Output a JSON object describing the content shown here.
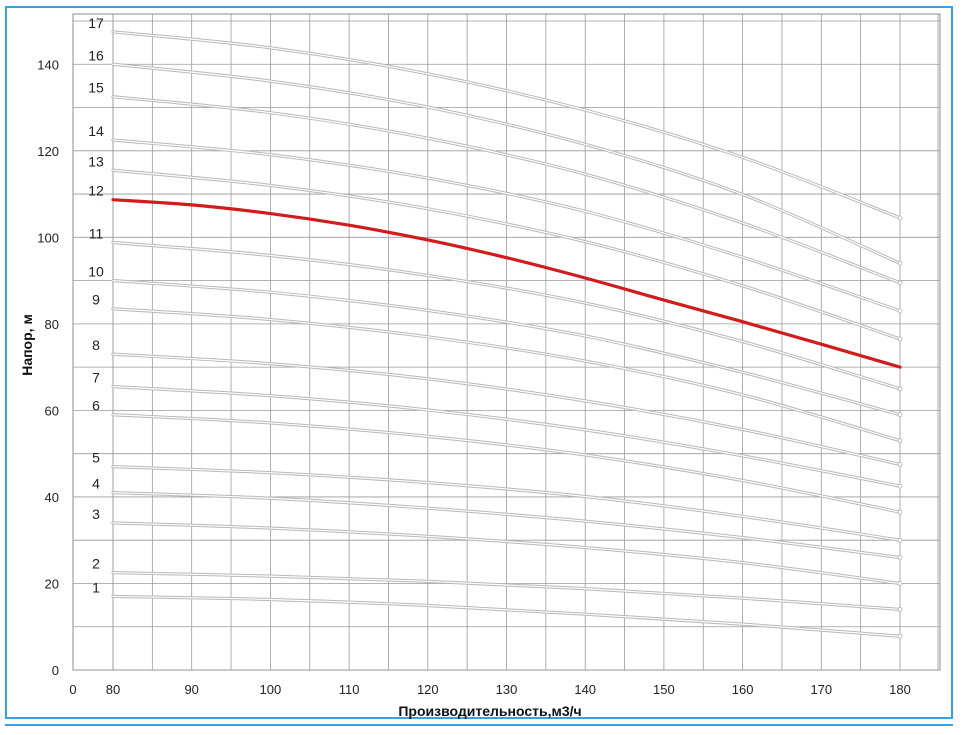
{
  "chart_data": {
    "type": "line",
    "title": "",
    "xlabel": "Производительность,м3/ч",
    "ylabel": "Напор, м",
    "xlim": [
      0,
      180
    ],
    "ylim": [
      0,
      150
    ],
    "x_ticks": [
      "0",
      "80",
      "90",
      "100",
      "110",
      "120",
      "130",
      "140",
      "150",
      "160",
      "170",
      "180"
    ],
    "y_ticks": [
      "0",
      "20",
      "40",
      "60",
      "80",
      "100",
      "120",
      "140"
    ],
    "grid": true,
    "highlight_color": "#d01c1c",
    "curve_color": "#b8b8b8",
    "series": [
      {
        "name": "1",
        "highlight": false,
        "x": [
          80,
          100,
          120,
          140,
          160,
          180
        ],
        "y": [
          17,
          16.3,
          14.9,
          12.9,
          10.6,
          7.8
        ]
      },
      {
        "name": "2",
        "highlight": false,
        "x": [
          80,
          100,
          120,
          140,
          160,
          180
        ],
        "y": [
          22.5,
          21.7,
          20.5,
          18.8,
          16.6,
          14
        ]
      },
      {
        "name": "3",
        "highlight": false,
        "x": [
          80,
          100,
          120,
          140,
          160,
          180
        ],
        "y": [
          34,
          32.8,
          30.9,
          28.3,
          24.8,
          20
        ]
      },
      {
        "name": "4",
        "highlight": false,
        "x": [
          80,
          100,
          120,
          140,
          160,
          180
        ],
        "y": [
          41,
          39.7,
          37.4,
          34.4,
          30.6,
          26
        ]
      },
      {
        "name": "5",
        "highlight": false,
        "x": [
          80,
          100,
          120,
          140,
          160,
          180
        ],
        "y": [
          47,
          45.6,
          43.3,
          40.1,
          35.5,
          30
        ]
      },
      {
        "name": "6",
        "highlight": false,
        "x": [
          80,
          100,
          120,
          140,
          160,
          180
        ],
        "y": [
          59,
          57.1,
          54,
          49.7,
          43.8,
          36.5
        ]
      },
      {
        "name": "7",
        "highlight": false,
        "x": [
          80,
          100,
          120,
          140,
          160,
          180
        ],
        "y": [
          65.5,
          63.4,
          60.1,
          55.5,
          49.5,
          42.5
        ]
      },
      {
        "name": "8",
        "highlight": false,
        "x": [
          80,
          100,
          120,
          140,
          160,
          180
        ],
        "y": [
          73,
          70.8,
          67.3,
          62.2,
          55.6,
          47.5
        ]
      },
      {
        "name": "9",
        "highlight": false,
        "x": [
          80,
          100,
          120,
          140,
          160,
          180
        ],
        "y": [
          83.5,
          81,
          77,
          71.4,
          63.6,
          53
        ]
      },
      {
        "name": "10",
        "highlight": false,
        "x": [
          80,
          100,
          120,
          140,
          160,
          180
        ],
        "y": [
          90,
          87.3,
          83.1,
          77.2,
          68.8,
          59
        ]
      },
      {
        "name": "11",
        "highlight": false,
        "x": [
          80,
          100,
          120,
          140,
          160,
          180
        ],
        "y": [
          98.8,
          95.8,
          91.2,
          84.8,
          75.9,
          65
        ]
      },
      {
        "name": "12",
        "highlight": true,
        "x": [
          80,
          90,
          100,
          110,
          120,
          130,
          140,
          150,
          160,
          170,
          180
        ],
        "y": [
          108.7,
          107.5,
          105.5,
          102.8,
          99.4,
          95.3,
          90.6,
          85.5,
          80.5,
          75.3,
          70
        ]
      },
      {
        "name": "13",
        "highlight": false,
        "x": [
          80,
          100,
          120,
          140,
          160,
          180
        ],
        "y": [
          115.5,
          112,
          106.6,
          99,
          88.8,
          76.5
        ]
      },
      {
        "name": "14",
        "highlight": false,
        "x": [
          80,
          100,
          120,
          140,
          160,
          180
        ],
        "y": [
          122.5,
          119.1,
          113.7,
          106,
          95.4,
          83
        ]
      },
      {
        "name": "15",
        "highlight": false,
        "x": [
          80,
          100,
          120,
          140,
          160,
          180
        ],
        "y": [
          132.5,
          128.8,
          122.9,
          114.6,
          103.3,
          89.5
        ]
      },
      {
        "name": "16",
        "highlight": false,
        "x": [
          80,
          100,
          120,
          140,
          160,
          180
        ],
        "y": [
          140,
          136.1,
          130.1,
          121.5,
          109.9,
          94
        ]
      },
      {
        "name": "17",
        "highlight": false,
        "x": [
          80,
          100,
          120,
          140,
          160,
          180
        ],
        "y": [
          147.5,
          143.8,
          137.8,
          129.4,
          118.5,
          104.5
        ]
      }
    ]
  }
}
